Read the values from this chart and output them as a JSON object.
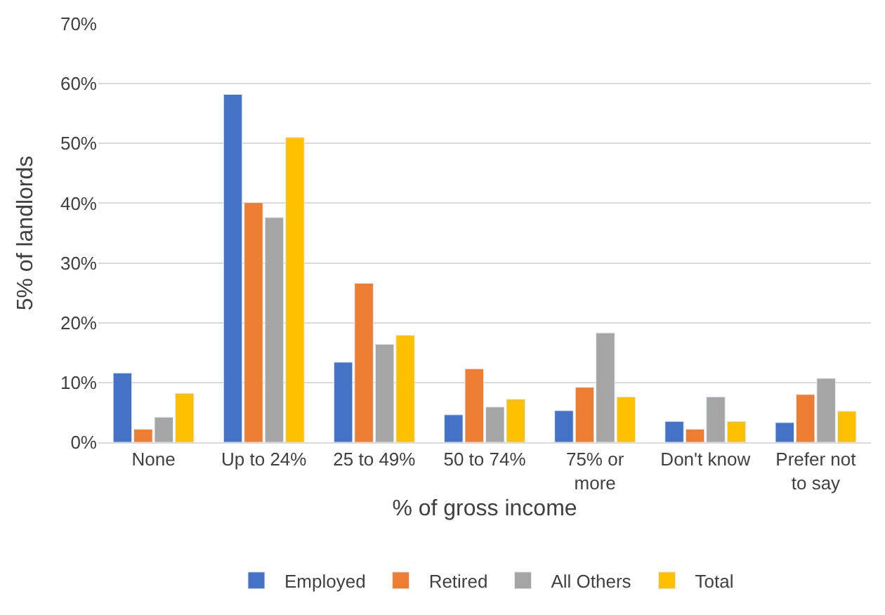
{
  "chart_data": {
    "type": "bar",
    "xlabel": "% of gross income",
    "ylabel": "5% of landlords",
    "categories": [
      "None",
      "Up to 24%",
      "25 to 49%",
      "50 to 74%",
      "75% or more",
      "Don't know",
      "Prefer not to say"
    ],
    "series": [
      {
        "name": "Employed",
        "color": "#4472c4",
        "values": [
          11.6,
          58.2,
          13.4,
          4.6,
          5.3,
          3.5,
          3.3
        ]
      },
      {
        "name": "Retired",
        "color": "#ed7d31",
        "values": [
          2.2,
          40.1,
          26.6,
          12.3,
          9.2,
          2.2,
          8.0
        ]
      },
      {
        "name": "All Others",
        "color": "#a5a5a5",
        "values": [
          4.2,
          37.6,
          16.4,
          5.9,
          18.3,
          7.6,
          10.7
        ]
      },
      {
        "name": "Total",
        "color": "#ffc000",
        "values": [
          8.2,
          51.0,
          17.9,
          7.2,
          7.6,
          3.5,
          5.2
        ]
      }
    ],
    "ylim": [
      0,
      70
    ],
    "yticks": [
      {
        "value": 0,
        "label": "0%"
      },
      {
        "value": 10,
        "label": "10%"
      },
      {
        "value": 20,
        "label": "20%"
      },
      {
        "value": 30,
        "label": "30%"
      },
      {
        "value": 40,
        "label": "40%"
      },
      {
        "value": 50,
        "label": "50%"
      },
      {
        "value": 60,
        "label": "60%"
      },
      {
        "value": 70,
        "label": "70%"
      }
    ],
    "grid": "y",
    "legend": "bottom"
  }
}
